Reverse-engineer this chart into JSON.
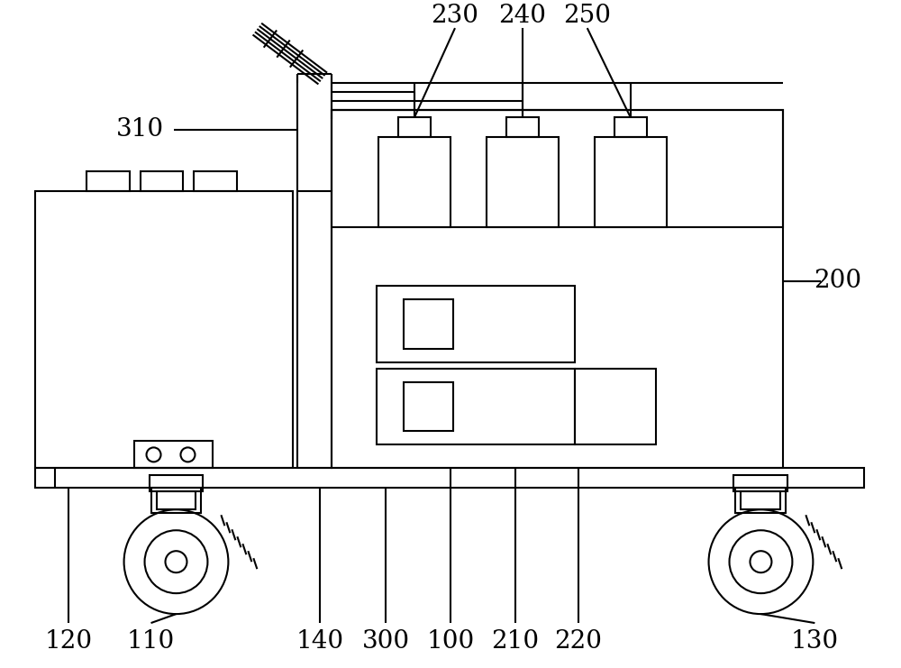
{
  "bg_color": "#ffffff",
  "lc": "#000000",
  "lw": 1.5,
  "fig_w": 10.0,
  "fig_h": 7.41,
  "font_size": 20,
  "font_family": "serif"
}
